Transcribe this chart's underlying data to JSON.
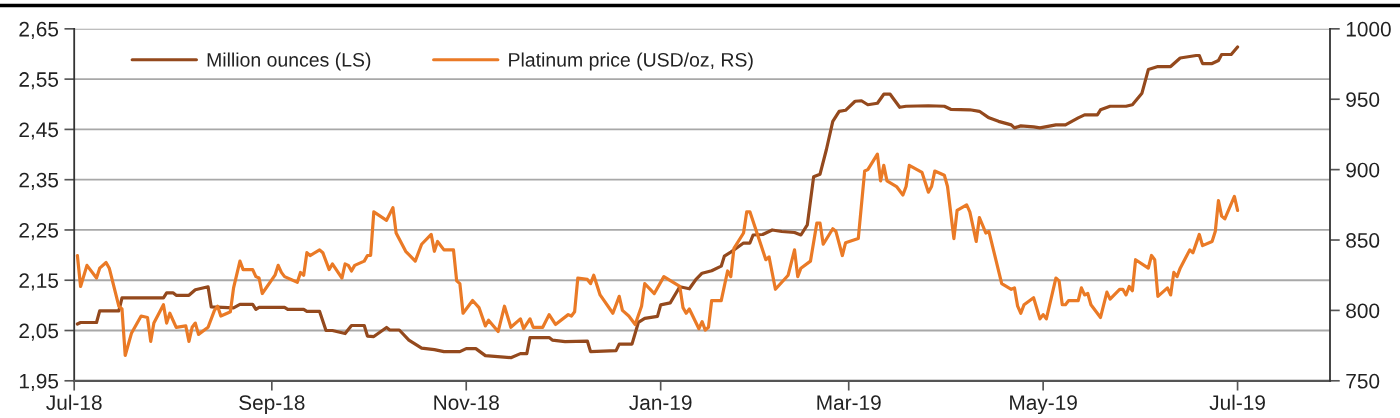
{
  "chart_data": {
    "type": "line",
    "series": [
      {
        "name": "Million ounces (LS)",
        "color": "#94491d",
        "x": [
          "2018-07-02",
          "2018-07-03",
          "2018-07-08",
          "2018-07-09",
          "2018-07-15",
          "2018-07-16",
          "2018-07-29",
          "2018-07-30",
          "2018-08-01",
          "2018-08-02",
          "2018-08-06",
          "2018-08-08",
          "2018-08-12",
          "2018-08-13",
          "2018-08-20",
          "2018-08-22",
          "2018-08-26",
          "2018-08-27",
          "2018-08-28",
          "2018-09-05",
          "2018-09-06",
          "2018-09-11",
          "2018-09-12",
          "2018-09-16",
          "2018-09-18",
          "2018-09-20",
          "2018-09-24",
          "2018-09-26",
          "2018-09-30",
          "2018-10-01",
          "2018-10-03",
          "2018-10-07",
          "2018-10-08",
          "2018-10-11",
          "2018-10-14",
          "2018-10-18",
          "2018-10-22",
          "2018-10-25",
          "2018-10-30",
          "2018-11-01",
          "2018-11-04",
          "2018-11-07",
          "2018-11-15",
          "2018-11-18",
          "2018-11-20",
          "2018-11-21",
          "2018-11-27",
          "2018-11-28",
          "2018-12-02",
          "2018-12-09",
          "2018-12-10",
          "2018-12-18",
          "2018-12-19",
          "2018-12-23",
          "2018-12-25",
          "2018-12-27",
          "2018-12-31",
          "2019-01-01",
          "2019-01-04",
          "2019-01-07",
          "2019-01-10",
          "2019-01-12",
          "2019-01-14",
          "2019-01-17",
          "2019-01-20",
          "2019-01-21",
          "2019-01-23",
          "2019-01-27",
          "2019-01-29",
          "2019-01-30",
          "2019-02-02",
          "2019-02-05",
          "2019-02-08",
          "2019-02-12",
          "2019-02-14",
          "2019-02-16",
          "2019-02-18",
          "2019-02-20",
          "2019-02-22",
          "2019-02-24",
          "2019-02-26",
          "2019-02-28",
          "2019-03-03",
          "2019-03-05",
          "2019-03-07",
          "2019-03-10",
          "2019-03-12",
          "2019-03-14",
          "2019-03-17",
          "2019-03-19",
          "2019-03-26",
          "2019-03-31",
          "2019-04-02",
          "2019-04-08",
          "2019-04-11",
          "2019-04-14",
          "2019-04-17",
          "2019-04-21",
          "2019-04-22",
          "2019-04-24",
          "2019-04-28",
          "2019-04-30",
          "2019-05-05",
          "2019-05-08",
          "2019-05-12",
          "2019-05-14",
          "2019-05-18",
          "2019-05-19",
          "2019-05-22",
          "2019-05-27",
          "2019-05-29",
          "2019-06-01",
          "2019-06-03",
          "2019-06-06",
          "2019-06-10",
          "2019-06-13",
          "2019-06-18",
          "2019-06-19",
          "2019-06-20",
          "2019-06-23",
          "2019-06-25",
          "2019-06-26",
          "2019-06-29",
          "2019-07-01"
        ],
        "values": [
          2.063,
          2.066,
          2.066,
          2.089,
          2.089,
          2.115,
          2.115,
          2.125,
          2.125,
          2.12,
          2.12,
          2.131,
          2.137,
          2.097,
          2.095,
          2.102,
          2.102,
          2.092,
          2.096,
          2.096,
          2.092,
          2.092,
          2.088,
          2.088,
          2.05,
          2.05,
          2.044,
          2.06,
          2.06,
          2.039,
          2.038,
          2.056,
          2.051,
          2.051,
          2.031,
          2.015,
          2.012,
          2.008,
          2.008,
          2.014,
          2.014,
          2.0,
          1.996,
          2.004,
          2.004,
          2.036,
          2.036,
          2.031,
          2.028,
          2.029,
          2.008,
          2.01,
          2.023,
          2.023,
          2.066,
          2.074,
          2.078,
          2.101,
          2.105,
          2.137,
          2.133,
          2.151,
          2.164,
          2.169,
          2.178,
          2.198,
          2.206,
          2.224,
          2.224,
          2.24,
          2.241,
          2.25,
          2.247,
          2.245,
          2.24,
          2.26,
          2.356,
          2.361,
          2.41,
          2.466,
          2.486,
          2.488,
          2.506,
          2.507,
          2.499,
          2.502,
          2.52,
          2.52,
          2.494,
          2.496,
          2.497,
          2.496,
          2.49,
          2.489,
          2.486,
          2.473,
          2.466,
          2.459,
          2.453,
          2.457,
          2.455,
          2.453,
          2.459,
          2.459,
          2.473,
          2.479,
          2.479,
          2.489,
          2.496,
          2.496,
          2.499,
          2.522,
          2.569,
          2.575,
          2.575,
          2.592,
          2.597,
          2.597,
          2.581,
          2.581,
          2.587,
          2.599,
          2.599,
          2.614
        ]
      },
      {
        "name": "Platinum price (USD/oz, RS)",
        "color": "#ea7a26",
        "axis": "y2",
        "x": [
          "2018-07-02",
          "2018-07-03",
          "2018-07-05",
          "2018-07-08",
          "2018-07-09",
          "2018-07-11",
          "2018-07-12",
          "2018-07-15",
          "2018-07-16",
          "2018-07-17",
          "2018-07-19",
          "2018-07-22",
          "2018-07-24",
          "2018-07-25",
          "2018-07-26",
          "2018-07-29",
          "2018-07-30",
          "2018-07-31",
          "2018-08-02",
          "2018-08-05",
          "2018-08-06",
          "2018-08-07",
          "2018-08-08",
          "2018-08-09",
          "2018-08-12",
          "2018-08-14",
          "2018-08-15",
          "2018-08-16",
          "2018-08-18",
          "2018-08-19",
          "2018-08-20",
          "2018-08-22",
          "2018-08-23",
          "2018-08-26",
          "2018-08-27",
          "2018-08-28",
          "2018-08-29",
          "2018-09-02",
          "2018-09-03",
          "2018-09-04",
          "2018-09-05",
          "2018-09-09",
          "2018-09-10",
          "2018-09-11",
          "2018-09-12",
          "2018-09-13",
          "2018-09-16",
          "2018-09-17",
          "2018-09-19",
          "2018-09-20",
          "2018-09-23",
          "2018-09-24",
          "2018-09-25",
          "2018-09-26",
          "2018-09-27",
          "2018-09-30",
          "2018-10-01",
          "2018-10-02",
          "2018-10-03",
          "2018-10-07",
          "2018-10-09",
          "2018-10-10",
          "2018-10-13",
          "2018-10-16",
          "2018-10-18",
          "2018-10-21",
          "2018-10-22",
          "2018-10-23",
          "2018-10-25",
          "2018-10-28",
          "2018-10-29",
          "2018-10-30",
          "2018-10-31",
          "2018-11-03",
          "2018-11-05",
          "2018-11-07",
          "2018-11-08",
          "2018-11-11",
          "2018-11-13",
          "2018-11-15",
          "2018-11-18",
          "2018-11-19",
          "2018-11-21",
          "2018-11-22",
          "2018-11-25",
          "2018-11-27",
          "2018-11-29",
          "2018-12-03",
          "2018-12-04",
          "2018-12-05",
          "2018-12-06",
          "2018-12-09",
          "2018-12-10",
          "2018-12-11",
          "2018-12-13",
          "2018-12-17",
          "2018-12-19",
          "2018-12-20",
          "2018-12-22",
          "2018-12-24",
          "2018-12-26",
          "2018-12-27",
          "2018-12-30",
          "2019-01-02",
          "2019-01-07",
          "2019-01-08",
          "2019-01-09",
          "2019-01-10",
          "2019-01-13",
          "2019-01-14",
          "2019-01-15",
          "2019-01-16",
          "2019-01-17",
          "2019-01-20",
          "2019-01-22",
          "2019-01-23",
          "2019-01-24",
          "2019-01-27",
          "2019-01-28",
          "2019-01-29",
          "2019-02-03",
          "2019-02-04",
          "2019-02-06",
          "2019-02-10",
          "2019-02-12",
          "2019-02-13",
          "2019-02-14",
          "2019-02-17",
          "2019-02-19",
          "2019-02-20",
          "2019-02-21",
          "2019-02-24",
          "2019-02-25",
          "2019-02-27",
          "2019-02-28",
          "2019-03-04",
          "2019-03-06",
          "2019-03-07",
          "2019-03-10",
          "2019-03-11",
          "2019-03-12",
          "2019-03-13",
          "2019-03-16",
          "2019-03-18",
          "2019-03-19",
          "2019-03-20",
          "2019-03-24",
          "2019-03-26",
          "2019-03-27",
          "2019-03-28",
          "2019-03-31",
          "2019-04-01",
          "2019-04-03",
          "2019-04-04",
          "2019-04-07",
          "2019-04-08",
          "2019-04-10",
          "2019-04-11",
          "2019-04-13",
          "2019-04-14",
          "2019-04-18",
          "2019-04-21",
          "2019-04-22",
          "2019-04-23",
          "2019-04-24",
          "2019-04-25",
          "2019-04-28",
          "2019-04-30",
          "2019-05-01",
          "2019-05-02",
          "2019-05-05",
          "2019-05-06",
          "2019-05-07",
          "2019-05-08",
          "2019-05-09",
          "2019-05-12",
          "2019-05-13",
          "2019-05-14",
          "2019-05-15",
          "2019-05-16",
          "2019-05-19",
          "2019-05-21",
          "2019-05-22",
          "2019-05-25",
          "2019-05-26",
          "2019-05-27",
          "2019-05-28",
          "2019-05-29",
          "2019-05-30",
          "2019-06-03",
          "2019-06-04",
          "2019-06-05",
          "2019-06-06",
          "2019-06-09",
          "2019-06-10",
          "2019-06-11",
          "2019-06-12",
          "2019-06-13",
          "2019-06-16",
          "2019-06-17",
          "2019-06-19",
          "2019-06-20",
          "2019-06-23",
          "2019-06-24",
          "2019-06-25",
          "2019-06-26",
          "2019-06-27",
          "2019-06-30",
          "2019-07-01"
        ],
        "values": [
          839,
          817,
          832,
          823,
          830,
          834,
          830,
          803,
          801,
          768,
          784,
          796,
          795,
          778,
          791,
          804,
          791,
          798,
          788,
          789,
          778,
          788,
          791,
          783,
          788,
          800,
          803,
          796,
          798,
          799,
          816,
          835,
          829,
          829,
          824,
          823,
          812,
          825,
          832,
          827,
          824,
          820,
          827,
          825,
          841,
          839,
          843,
          841,
          829,
          833,
          823,
          833,
          832,
          828,
          832,
          835,
          839,
          839,
          870,
          864,
          873,
          855,
          842,
          835,
          847,
          854,
          842,
          849,
          843,
          843,
          821,
          819,
          798,
          807,
          802,
          789,
          793,
          785,
          803,
          788,
          794,
          787,
          794,
          788,
          788,
          797,
          790,
          797,
          796,
          799,
          823,
          822,
          819,
          825,
          811,
          798,
          810,
          800,
          796,
          790,
          803,
          819,
          812,
          824,
          817,
          802,
          798,
          801,
          787,
          792,
          786,
          788,
          807,
          807,
          828,
          824,
          844,
          855,
          870,
          870,
          836,
          838,
          815,
          825,
          843,
          824,
          830,
          835,
          862,
          862,
          847,
          858,
          856,
          839,
          848,
          851,
          899,
          900,
          911,
          892,
          903,
          892,
          888,
          882,
          888,
          903,
          898,
          884,
          888,
          899,
          896,
          888,
          851,
          871,
          875,
          870,
          849,
          866,
          855,
          856,
          819,
          815,
          816,
          803,
          798,
          804,
          809,
          794,
          797,
          794,
          823,
          821,
          804,
          804,
          807,
          807,
          816,
          811,
          812,
          804,
          795,
          813,
          808,
          815,
          815,
          811,
          817,
          814,
          836,
          830,
          839,
          836,
          810,
          816,
          811,
          827,
          824,
          830,
          843,
          841,
          854,
          846,
          849,
          856,
          878,
          867,
          865,
          881,
          871
        ]
      }
    ],
    "xlim": [
      "2018-07-01",
      "2019-07-30"
    ],
    "xticks": [
      {
        "value": "2018-07-01",
        "label": "Jul-18"
      },
      {
        "value": "2018-09-01",
        "label": "Sep-18"
      },
      {
        "value": "2018-11-01",
        "label": "Nov-18"
      },
      {
        "value": "2019-01-01",
        "label": "Jan-19"
      },
      {
        "value": "2019-03-01",
        "label": "Mar-19"
      },
      {
        "value": "2019-05-01",
        "label": "May-19"
      },
      {
        "value": "2019-07-01",
        "label": "Jul-19"
      }
    ],
    "ylim": [
      1.95,
      2.65
    ],
    "yticks": [
      {
        "value": 1.95,
        "label": "1,95"
      },
      {
        "value": 2.05,
        "label": "2,05"
      },
      {
        "value": 2.15,
        "label": "2,15"
      },
      {
        "value": 2.25,
        "label": "2,25"
      },
      {
        "value": 2.35,
        "label": "2,35"
      },
      {
        "value": 2.45,
        "label": "2,45"
      },
      {
        "value": 2.55,
        "label": "2,55"
      },
      {
        "value": 2.65,
        "label": "2,65"
      }
    ],
    "y2lim": [
      750,
      1000
    ],
    "y2ticks": [
      750,
      800,
      850,
      900,
      950,
      1000
    ],
    "grid": "y",
    "legend": "top left"
  }
}
